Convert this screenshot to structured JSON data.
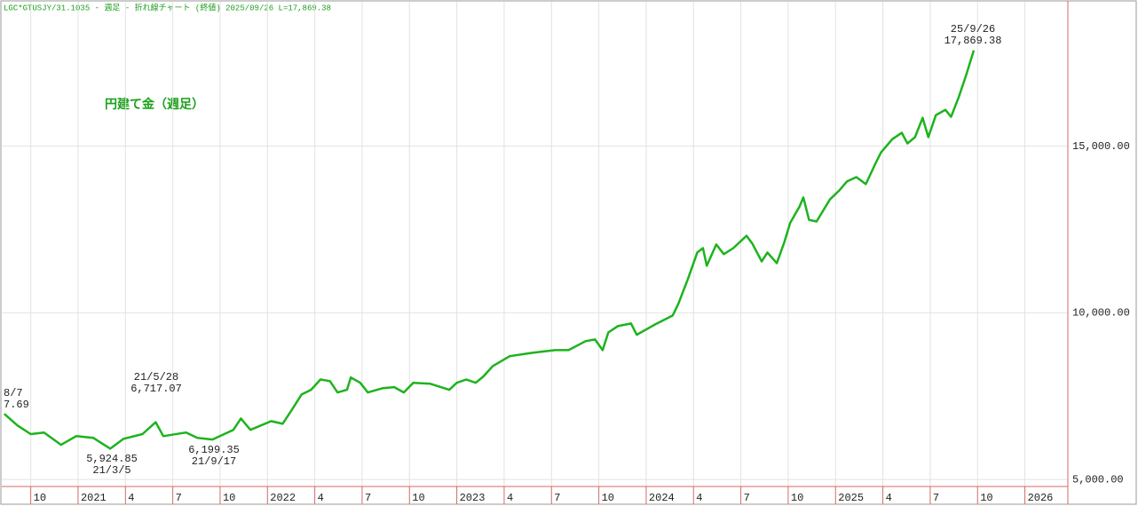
{
  "chart_data": {
    "type": "line",
    "header": "LGC*GTUSJY/31.1035 - 週足 - 折れ線チャート (終値)  2025/09/26 L=17,869.38",
    "title": "円建て金（週足）",
    "x": [
      2020.61,
      2020.68,
      2020.75,
      2020.82,
      2020.91,
      2020.99,
      2021.08,
      2021.17,
      2021.24,
      2021.34,
      2021.41,
      2021.45,
      2021.57,
      2021.63,
      2021.71,
      2021.82,
      2021.86,
      2021.91,
      2022.02,
      2022.08,
      2022.13,
      2022.18,
      2022.23,
      2022.28,
      2022.33,
      2022.37,
      2022.42,
      2022.44,
      2022.49,
      2022.53,
      2022.61,
      2022.67,
      2022.72,
      2022.77,
      2022.86,
      2022.96,
      2023.0,
      2023.05,
      2023.1,
      2023.14,
      2023.19,
      2023.28,
      2023.4,
      2023.52,
      2023.59,
      2023.68,
      2023.73,
      2023.77,
      2023.8,
      2023.85,
      2023.92,
      2023.95,
      2024.04,
      2024.14,
      2024.17,
      2024.22,
      2024.27,
      2024.3,
      2024.32,
      2024.37,
      2024.41,
      2024.46,
      2024.53,
      2024.56,
      2024.61,
      2024.64,
      2024.69,
      2024.73,
      2024.76,
      2024.81,
      2024.83,
      2024.86,
      2024.9,
      2024.97,
      2025.02,
      2025.06,
      2025.11,
      2025.16,
      2025.21,
      2025.24,
      2025.3,
      2025.35,
      2025.38,
      2025.42,
      2025.46,
      2025.49,
      2025.53,
      2025.58,
      2025.61,
      2025.65,
      2025.69,
      2025.73
    ],
    "series": [
      {
        "color": "#1db31d",
        "values": [
          6967.69,
          6620,
          6360,
          6410,
          6040,
          6300,
          6250,
          5924.85,
          6220,
          6360,
          6717.07,
          6300,
          6410,
          6250,
          6199.35,
          6490,
          6830,
          6490,
          6750,
          6670,
          7100,
          7550,
          7690,
          8000,
          7950,
          7610,
          7690,
          8060,
          7900,
          7610,
          7740,
          7770,
          7610,
          7900,
          7870,
          7690,
          7900,
          8000,
          7900,
          8090,
          8400,
          8700,
          8800,
          8880,
          8880,
          9150,
          9200,
          8880,
          9410,
          9600,
          9680,
          9340,
          9630,
          9920,
          10270,
          11010,
          11810,
          11940,
          11410,
          12050,
          11760,
          11940,
          12310,
          12080,
          11540,
          11810,
          11490,
          12130,
          12690,
          13190,
          13460,
          12790,
          12740,
          13400,
          13670,
          13940,
          14070,
          13860,
          14470,
          14810,
          15210,
          15400,
          15080,
          15270,
          15850,
          15270,
          15930,
          16090,
          15880,
          16460,
          17130,
          17869.38
        ]
      }
    ],
    "annotations": [
      [
        "8/7",
        "7.69"
      ],
      [
        "5,924.85",
        "21/3/5"
      ],
      [
        "21/5/28",
        "6,717.07"
      ],
      [
        "6,199.35",
        "21/9/17"
      ],
      [
        "25/9/26",
        "17,869.38"
      ]
    ],
    "xlim": [
      2020.597,
      2026.227
    ],
    "xticks": [
      {
        "value": 2020.75,
        "label": "10"
      },
      {
        "value": 2021,
        "label": "2021"
      },
      {
        "value": 2021.25,
        "label": "4"
      },
      {
        "value": 2021.5,
        "label": "7"
      },
      {
        "value": 2021.75,
        "label": "10"
      },
      {
        "value": 2022,
        "label": "2022"
      },
      {
        "value": 2022.25,
        "label": "4"
      },
      {
        "value": 2022.5,
        "label": "7"
      },
      {
        "value": 2022.75,
        "label": "10"
      },
      {
        "value": 2023,
        "label": "2023"
      },
      {
        "value": 2023.25,
        "label": "4"
      },
      {
        "value": 2023.5,
        "label": "7"
      },
      {
        "value": 2023.75,
        "label": "10"
      },
      {
        "value": 2024,
        "label": "2024"
      },
      {
        "value": 2024.25,
        "label": "4"
      },
      {
        "value": 2024.5,
        "label": "7"
      },
      {
        "value": 2024.75,
        "label": "10"
      },
      {
        "value": 2025,
        "label": "2025"
      },
      {
        "value": 2025.25,
        "label": "4"
      },
      {
        "value": 2025.5,
        "label": "7"
      },
      {
        "value": 2025.75,
        "label": "10"
      },
      {
        "value": 2026,
        "label": "2026"
      }
    ],
    "ylim": [
      4790,
      19330
    ],
    "yticks": [
      {
        "value": 5000,
        "label": "5,000.00"
      },
      {
        "value": 10000,
        "label": "10,000.00"
      },
      {
        "value": 15000,
        "label": "15,000.00"
      }
    ],
    "grid": true
  }
}
